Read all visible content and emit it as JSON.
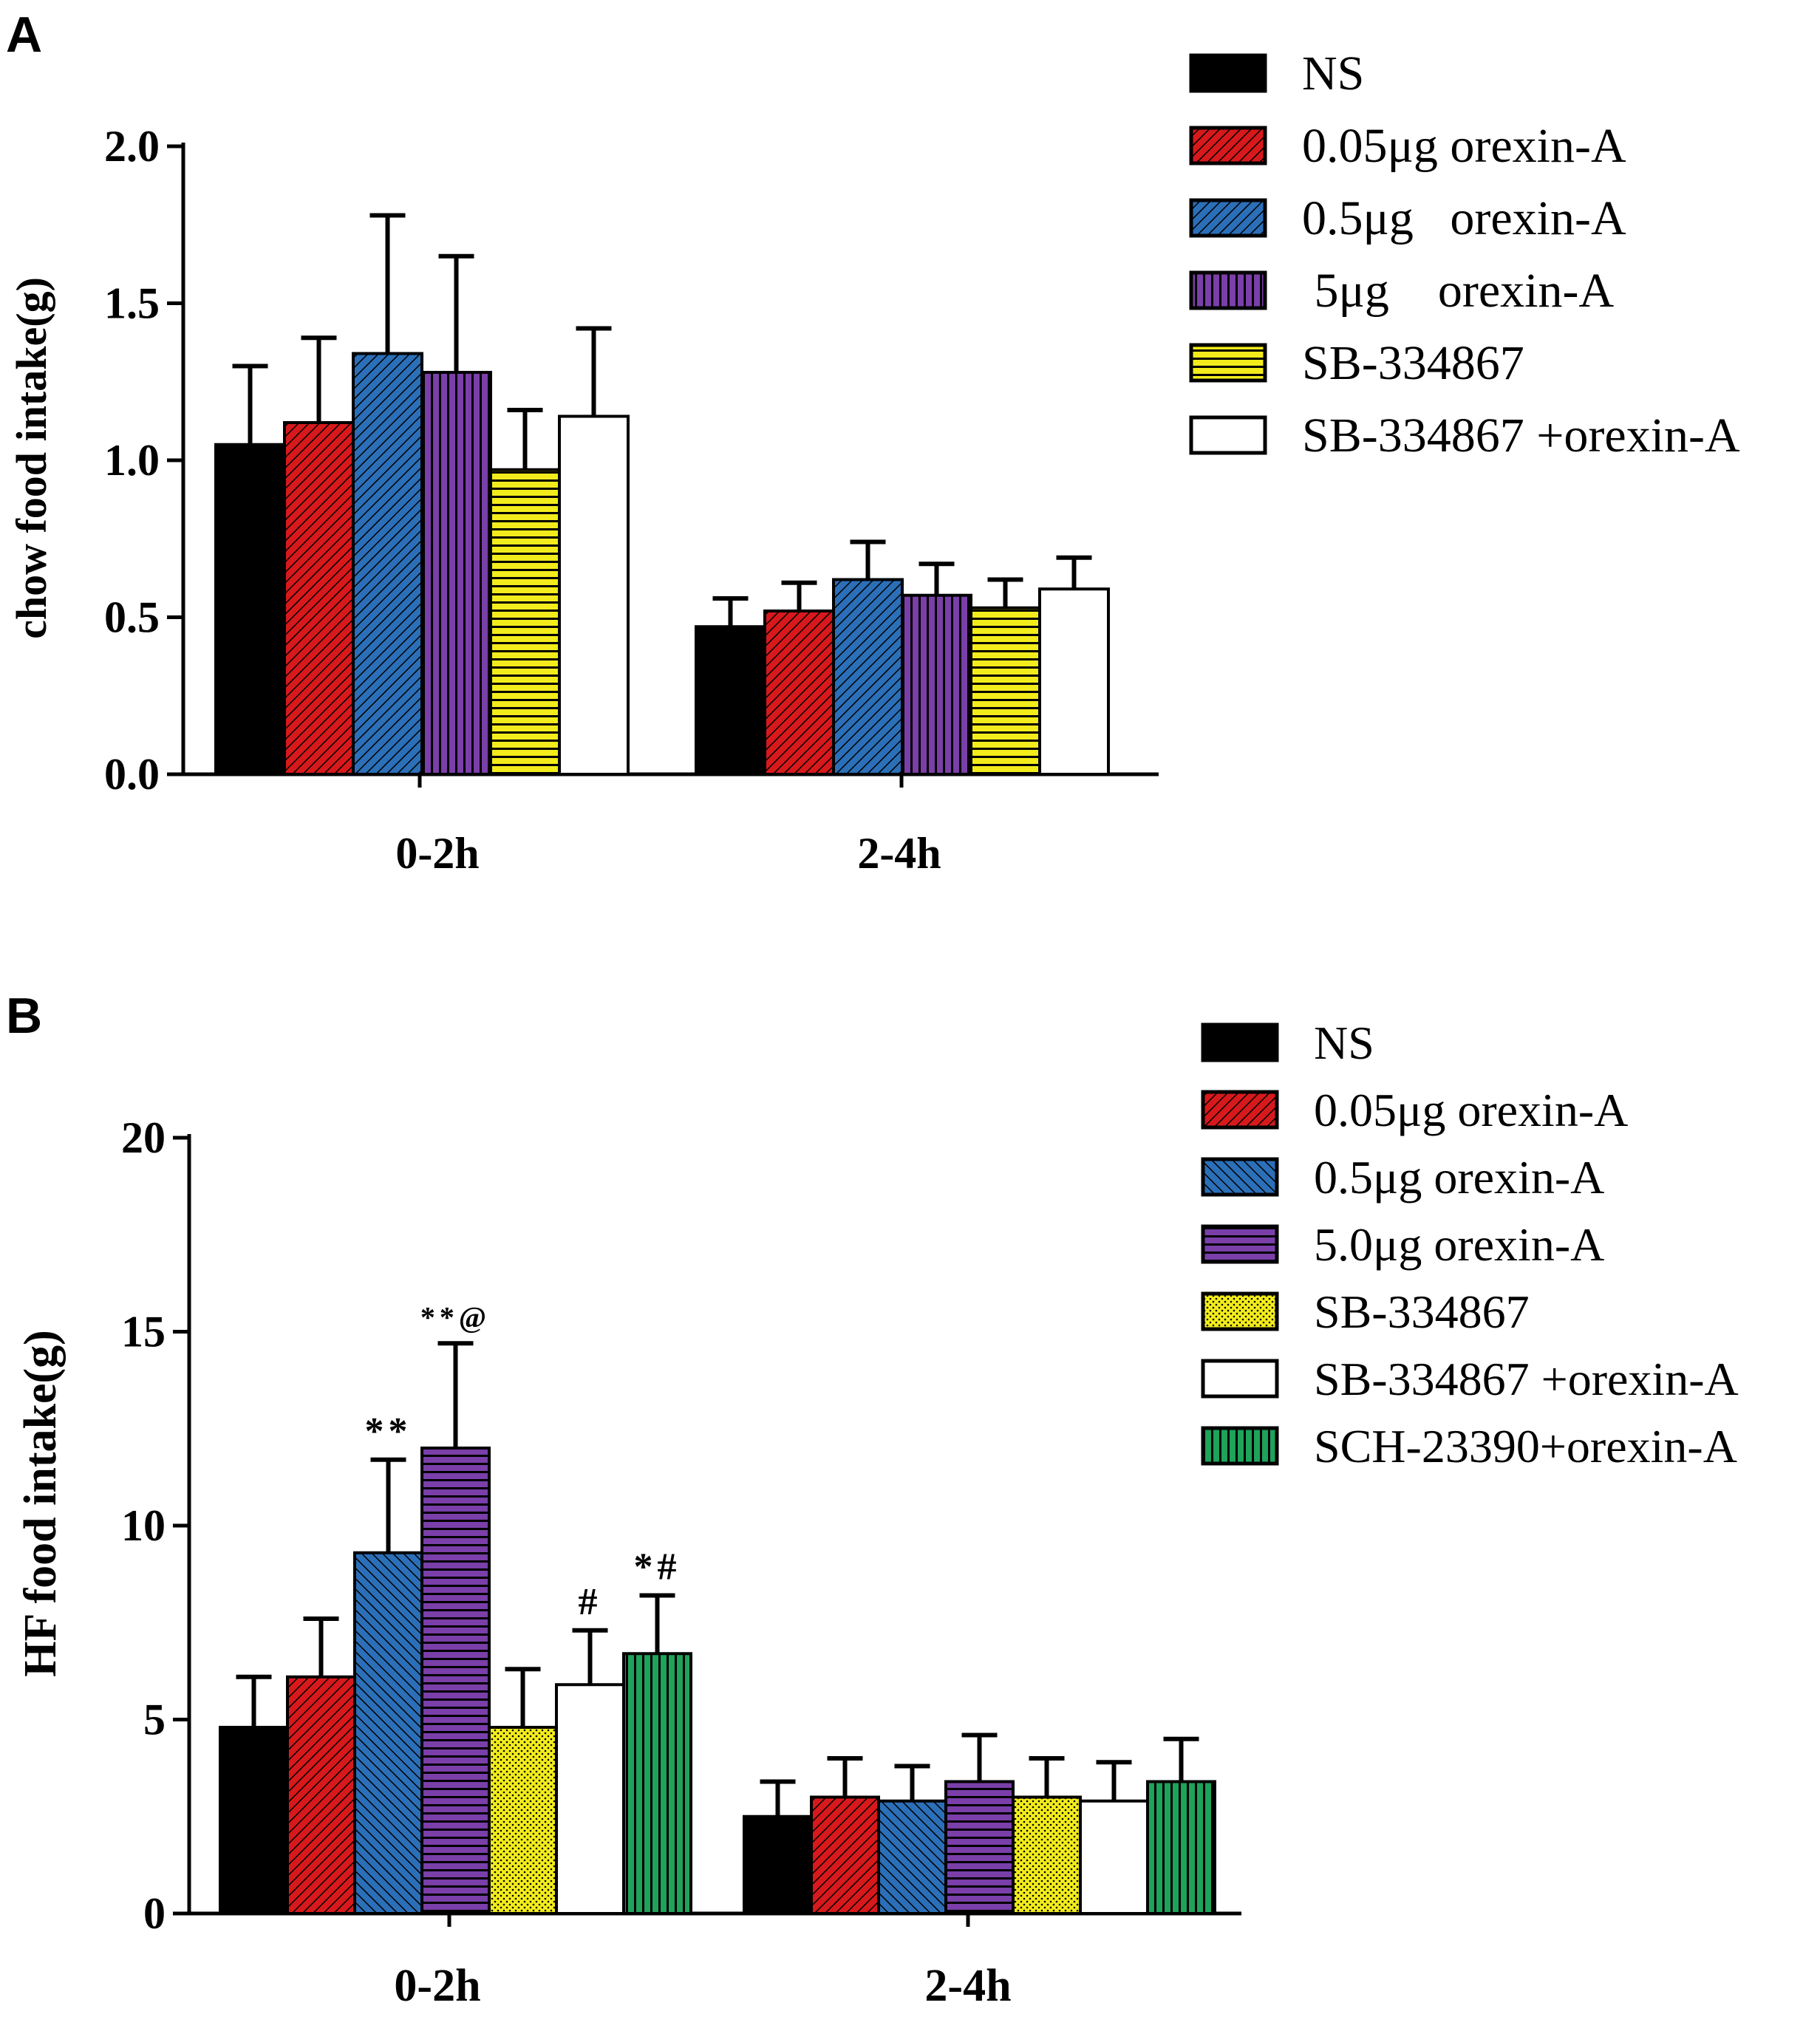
{
  "colors": {
    "ns": "#000000",
    "red": "#d7191c",
    "blue": "#2b6fb8",
    "purple": "#7a3fa8",
    "yellow": "#f2ec1c",
    "white": "#ffffff",
    "green": "#1fa25a"
  },
  "chart_data": [
    {
      "panel": "A",
      "type": "bar",
      "ylabel": "chow food intake(g)",
      "ylim": [
        0,
        2.0
      ],
      "yticks": [
        "0.0",
        "0.5",
        "1.0",
        "1.5",
        "2.0"
      ],
      "ytick_values": [
        0,
        0.5,
        1.0,
        1.5,
        2.0
      ],
      "categories": [
        "0-2h",
        "2-4h"
      ],
      "legend": [
        "NS",
        "0.05μg orexin-A",
        "0.5μg   orexin-A",
        " 5μg    orexin-A",
        "SB-334867",
        "SB-334867 +orexin-A"
      ],
      "series": [
        {
          "name": "NS",
          "color_key": "ns",
          "pattern": "solid",
          "values": [
            1.05,
            0.47
          ],
          "errors": [
            0.25,
            0.09
          ]
        },
        {
          "name": "0.05μg orexin-A",
          "color_key": "red",
          "pattern": "diag",
          "values": [
            1.12,
            0.52
          ],
          "errors": [
            0.27,
            0.09
          ]
        },
        {
          "name": "0.5μg orexin-A",
          "color_key": "blue",
          "pattern": "diag",
          "values": [
            1.34,
            0.62
          ],
          "errors": [
            0.44,
            0.12
          ]
        },
        {
          "name": "5μg orexin-A",
          "color_key": "purple",
          "pattern": "vert",
          "values": [
            1.28,
            0.57
          ],
          "errors": [
            0.37,
            0.1
          ]
        },
        {
          "name": "SB-334867",
          "color_key": "yellow",
          "pattern": "horiz",
          "values": [
            0.97,
            0.53
          ],
          "errors": [
            0.19,
            0.09
          ]
        },
        {
          "name": "SB-334867 +orexin-A",
          "color_key": "white",
          "pattern": "none",
          "values": [
            1.14,
            0.59
          ],
          "errors": [
            0.28,
            0.1
          ]
        }
      ]
    },
    {
      "panel": "B",
      "type": "bar",
      "ylabel": "HF food intake(g)",
      "ylim": [
        0,
        20
      ],
      "yticks": [
        "0",
        "5",
        "10",
        "15",
        "20"
      ],
      "ytick_values": [
        0,
        5,
        10,
        15,
        20
      ],
      "categories": [
        "0-2h",
        "2-4h"
      ],
      "legend": [
        "NS",
        "0.05μg orexin-A",
        "0.5μg orexin-A",
        "5.0μg orexin-A",
        "SB-334867",
        "SB-334867 +orexin-A",
        "SCH-23390+orexin-A"
      ],
      "series": [
        {
          "name": "NS",
          "color_key": "ns",
          "pattern": "solid",
          "values": [
            4.8,
            2.5
          ],
          "errors": [
            1.3,
            0.9
          ],
          "annotations": [
            "",
            ""
          ]
        },
        {
          "name": "0.05μg orexin-A",
          "color_key": "red",
          "pattern": "diag",
          "values": [
            6.1,
            3.0
          ],
          "errors": [
            1.5,
            1.0
          ],
          "annotations": [
            "",
            ""
          ]
        },
        {
          "name": "0.5μg orexin-A",
          "color_key": "blue",
          "pattern": "diag2",
          "values": [
            9.3,
            2.9
          ],
          "errors": [
            2.4,
            0.9
          ],
          "annotations": [
            "**",
            ""
          ]
        },
        {
          "name": "5.0μg orexin-A",
          "color_key": "purple",
          "pattern": "horiz",
          "values": [
            12.0,
            3.4
          ],
          "errors": [
            2.7,
            1.2
          ],
          "annotations": [
            "**@",
            ""
          ]
        },
        {
          "name": "SB-334867",
          "color_key": "yellow",
          "pattern": "dots",
          "values": [
            4.8,
            3.0
          ],
          "errors": [
            1.5,
            1.0
          ],
          "annotations": [
            "",
            ""
          ]
        },
        {
          "name": "SB-334867 +orexin-A",
          "color_key": "white",
          "pattern": "none",
          "values": [
            5.9,
            2.9
          ],
          "errors": [
            1.4,
            1.0
          ],
          "annotations": [
            "#",
            ""
          ]
        },
        {
          "name": "SCH-23390+orexin-A",
          "color_key": "green",
          "pattern": "vert",
          "values": [
            6.7,
            3.4
          ],
          "errors": [
            1.5,
            1.1
          ],
          "annotations": [
            "*#",
            ""
          ]
        }
      ]
    }
  ]
}
